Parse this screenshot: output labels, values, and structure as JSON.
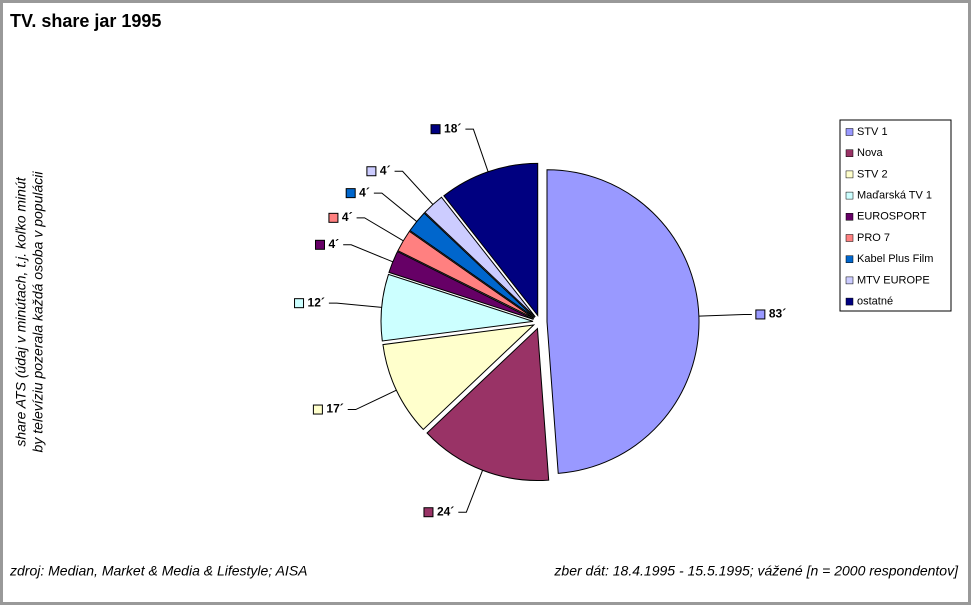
{
  "chart_data": {
    "type": "pie",
    "title": "TV. share jar 1995",
    "ylabel": [
      "share ATS (údaj v minútach, t.j. koľko minút",
      "by televíziu pozerala každá osoba v populácii"
    ],
    "source": "zdroj: Median, Market & Media & Lifestyle; AISA",
    "note": "zber dát: 18.4.1995 - 15.5.1995; vážené [n = 2000 respondentov]",
    "categories": [
      "STV 1",
      "Nova",
      "STV 2",
      "Maďarská TV 1",
      "EUROSPORT",
      "PRO 7",
      "Kabel Plus Film",
      "MTV EUROPE",
      "ostatné"
    ],
    "values": [
      83,
      24,
      17,
      12,
      4,
      4,
      4,
      4,
      18
    ],
    "value_labels": [
      "83´",
      "24´",
      "17´",
      "12´",
      "4´",
      "4´",
      "4´",
      "4´",
      "18´"
    ],
    "colors": [
      "#9999ff",
      "#993366",
      "#ffffcc",
      "#ccffff",
      "#660066",
      "#ff8080",
      "#0066cc",
      "#ccccff",
      "#000080"
    ],
    "legend": "right"
  }
}
